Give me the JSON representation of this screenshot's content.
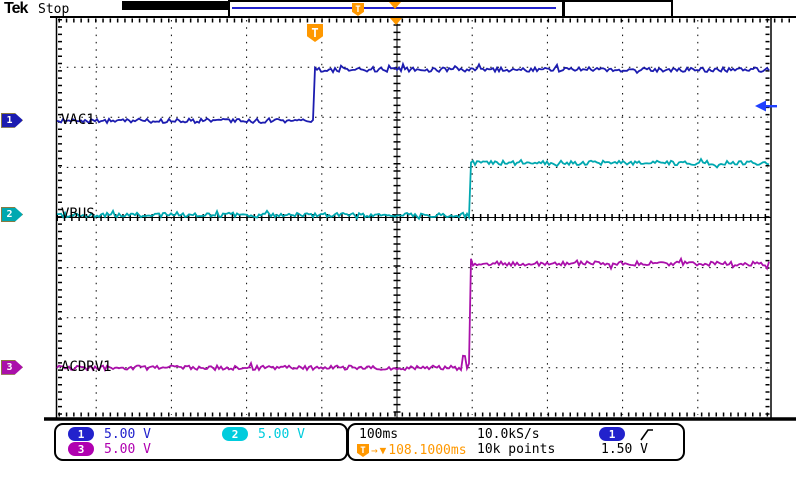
{
  "device": {
    "brand": "Tek",
    "status": "Stop"
  },
  "icons": {
    "arrow_right": "→",
    "triangle_down": "▼",
    "trigger_flag": "T"
  },
  "channels": [
    {
      "number": "1",
      "label": "VAC1",
      "scale": "5.00 V"
    },
    {
      "number": "2",
      "label": "VBUS",
      "scale": "5.00 V"
    },
    {
      "number": "3",
      "label": "ACDRV1",
      "scale": "5.00 V"
    }
  ],
  "horizontal": {
    "scale": "100ms",
    "sample_rate": "10.0kS/s",
    "record_length": "10k points",
    "delay": "108.1000ms"
  },
  "trigger": {
    "source": "1",
    "level": "1.50 V",
    "slope": "rising"
  },
  "colors": {
    "ch1": "#1c1cb0",
    "ch2": "#00a8b0",
    "ch3": "#aa10aa",
    "ch1_text": "#2222cc",
    "ch2_text": "#00ccdd",
    "ch3_text": "#b000b0",
    "orange": "#ff9800",
    "trigger_arrow": "#2040ff",
    "grid": "#000000"
  },
  "chart_data": {
    "type": "line",
    "x_units": "ms",
    "time_per_div_ms": 100,
    "divisions": {
      "horizontal": 10,
      "vertical": 8
    },
    "volts_per_div": 5,
    "grid": "dotted with solid center crosshair",
    "series": [
      {
        "name": "VAC1",
        "channel": 1,
        "low_v": 0,
        "high_v": 5.1,
        "rise_at_ms": 0,
        "position_divs": 1.93
      },
      {
        "name": "VBUS",
        "channel": 2,
        "low_v": 0,
        "high_v": 5.2,
        "rise_at_ms": 207,
        "position_divs": 0.05
      },
      {
        "name": "ACDRV1",
        "channel": 3,
        "low_v": 0,
        "high_v": 10.4,
        "rise_at_ms": 206,
        "position_divs": -3.0,
        "pre_rise_glitch": true
      }
    ],
    "trigger": {
      "channel": 1,
      "level_v": 1.5,
      "slope": "rising",
      "delay_ms": 108.1
    }
  }
}
